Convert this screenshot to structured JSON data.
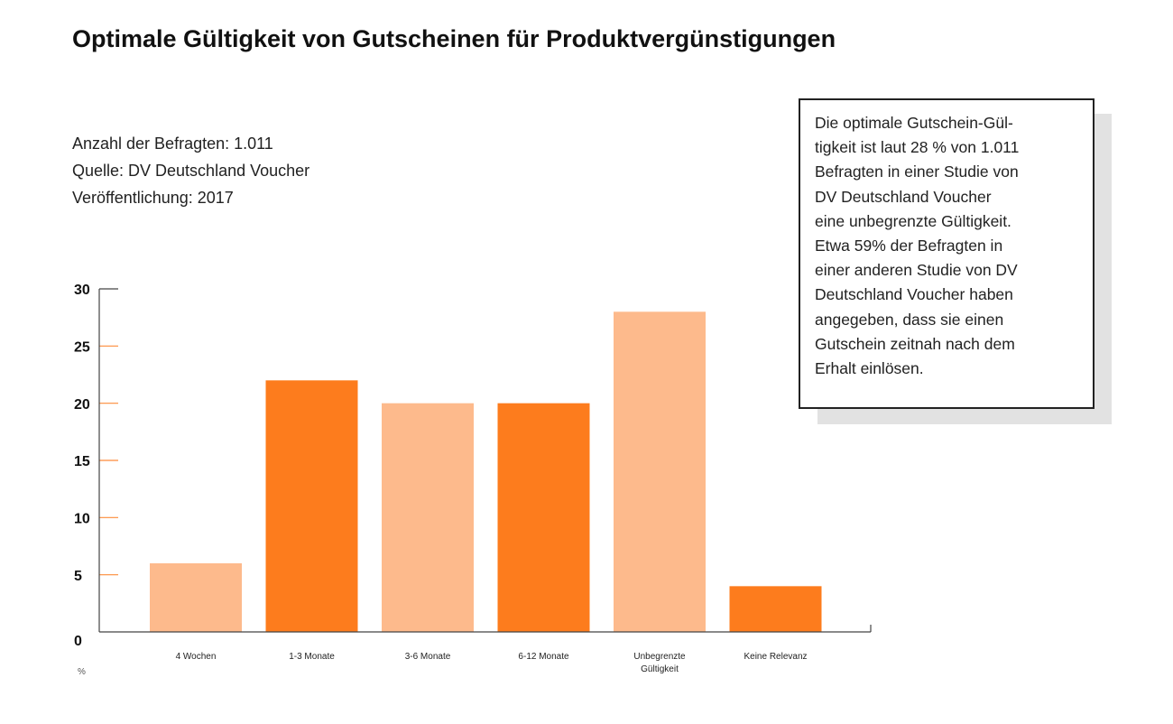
{
  "header": {
    "title": "Optimale Gültigkeit von Gutscheinen für Produktvergünstigungen"
  },
  "meta": {
    "respondents": "Anzahl der Befragten: 1.011",
    "source": "Quelle: DV Deutschland Voucher",
    "published": "Veröffentlichung: 2017"
  },
  "callout": {
    "lines": [
      "Die optimale Gutschein-Gül-",
      "tigkeit ist laut 28 % von 1.011",
      "Befragten in einer Studie von",
      "DV Deutschland Voucher",
      "eine unbegrenzte Gültigkeit.",
      "Etwa 59% der Befragten in",
      "einer anderen Studie von DV",
      "Deutschland Voucher haben",
      "angegeben, dass sie einen",
      "Gutschein zeitnah nach dem",
      "Erhalt einlösen."
    ]
  },
  "colors": {
    "light": "#fdba8c",
    "dark": "#fd7c1d",
    "tick_orange": "#fd8b3a",
    "axis": "#444444"
  },
  "chart_data": {
    "type": "bar",
    "categories": [
      "4 Wochen",
      "1-3 Monate",
      "3-6 Monate",
      "6-12 Monate",
      "Unbegrenzte Gültigkeit",
      "Keine Relevanz"
    ],
    "category_label_lines": [
      [
        "4 Wochen"
      ],
      [
        "1-3 Monate"
      ],
      [
        "3-6 Monate"
      ],
      [
        "6-12 Monate"
      ],
      [
        "Unbegrenzte",
        "Gültigkeit"
      ],
      [
        "Keine Relevanz"
      ]
    ],
    "values": [
      6,
      22,
      20,
      20,
      28,
      4
    ],
    "bar_shades": [
      "light",
      "dark",
      "light",
      "dark",
      "light",
      "dark"
    ],
    "yticks": [
      0,
      5,
      10,
      15,
      20,
      25,
      30
    ],
    "ylim": [
      0,
      30
    ],
    "unit": "%",
    "title": "Optimale Gültigkeit von Gutscheinen für Produktvergünstigungen",
    "xlabel": "",
    "ylabel": "%",
    "grid": false
  }
}
